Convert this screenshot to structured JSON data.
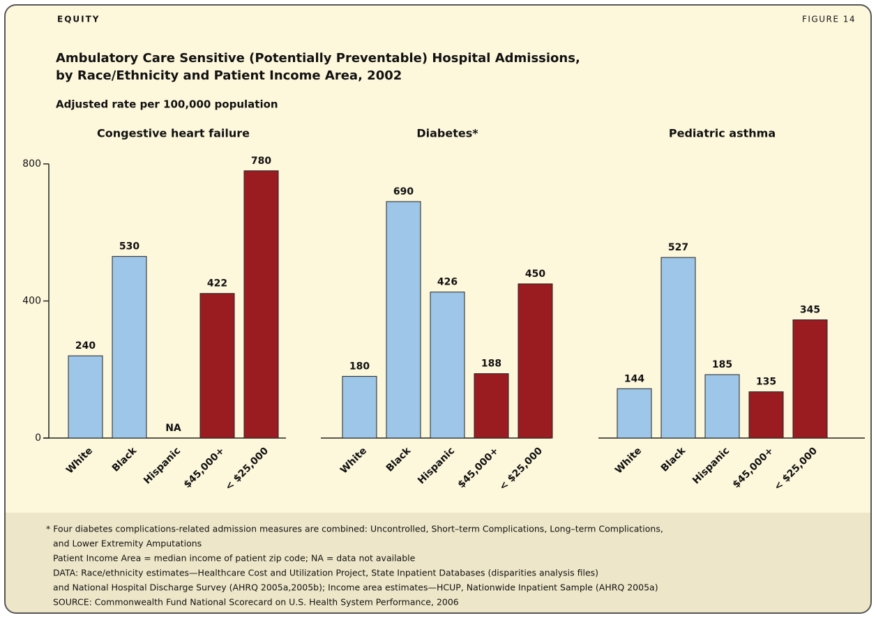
{
  "header": {
    "section": "EQUITY",
    "figure": "FIGURE 14"
  },
  "title_lines": [
    "Ambulatory Care Sensitive (Potentially Preventable) Hospital Admissions,",
    "by Race/Ethnicity and Patient Income Area, 2002"
  ],
  "subtitle": "Adjusted rate per 100,000 population",
  "chart_data": [
    {
      "type": "bar",
      "title": "Congestive heart failure",
      "categories": [
        "White",
        "Black",
        "Hispanic",
        "$45,000+",
        "< $25,000"
      ],
      "values": [
        240,
        530,
        null,
        422,
        780
      ],
      "value_labels": [
        "240",
        "530",
        "NA",
        "422",
        "780"
      ],
      "colors": [
        "#9dc6e8",
        "#9dc6e8",
        "#9dc6e8",
        "#9a1c21",
        "#9a1c21"
      ],
      "ylim": [
        0,
        800
      ],
      "yticks": [
        0,
        400,
        800
      ]
    },
    {
      "type": "bar",
      "title": "Diabetes*",
      "categories": [
        "White",
        "Black",
        "Hispanic",
        "$45,000+",
        "< $25,000"
      ],
      "values": [
        180,
        690,
        426,
        188,
        450
      ],
      "colors": [
        "#9dc6e8",
        "#9dc6e8",
        "#9dc6e8",
        "#9a1c21",
        "#9a1c21"
      ],
      "ylim": [
        0,
        800
      ]
    },
    {
      "type": "bar",
      "title": "Pediatric asthma",
      "categories": [
        "White",
        "Black",
        "Hispanic",
        "$45,000+",
        "< $25,000"
      ],
      "values": [
        144,
        527,
        185,
        135,
        345
      ],
      "colors": [
        "#9dc6e8",
        "#9dc6e8",
        "#9dc6e8",
        "#9a1c21",
        "#9a1c21"
      ],
      "ylim": [
        0,
        800
      ]
    }
  ],
  "footnotes": [
    "* Four diabetes complications-related admission measures are combined: Uncontrolled, Short–term Complications, Long–term Complications,",
    "and Lower Extremity Amputations",
    "Patient Income Area = median income of patient zip code; NA = data not available",
    "DATA: Race/ethnicity estimates—Healthcare Cost and Utilization Project, State Inpatient Databases (disparities analysis files)",
    "and National Hospital Discharge Survey (AHRQ 2005a,2005b); Income area estimates—HCUP, Nationwide Inpatient Sample (AHRQ 2005a)",
    "SOURCE: Commonwealth Fund National Scorecard on U.S. Health System Performance, 2006"
  ]
}
